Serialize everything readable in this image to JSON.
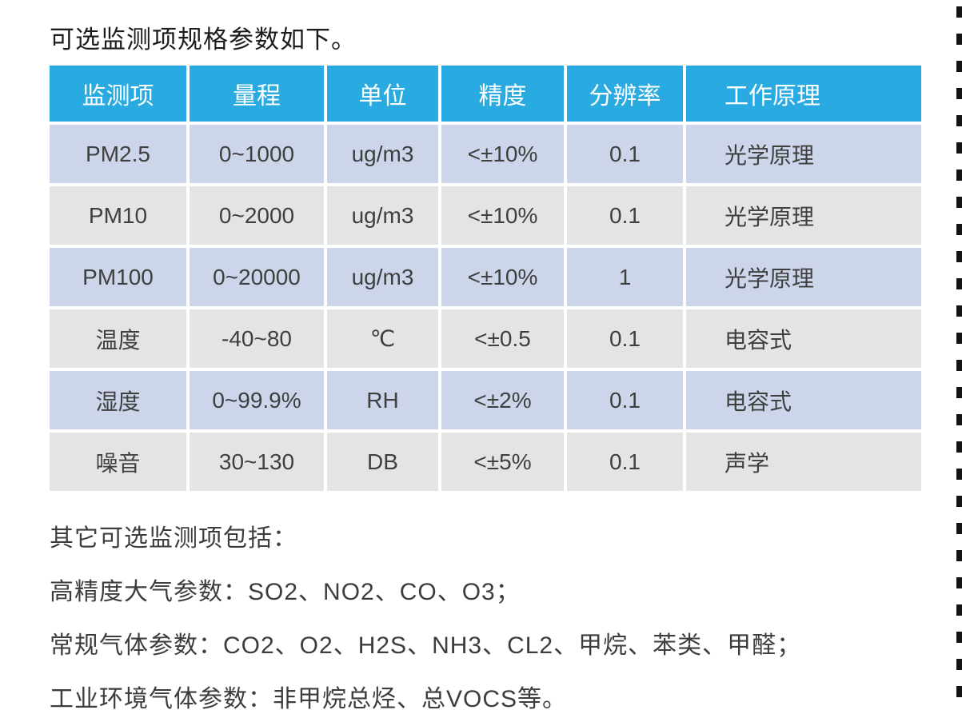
{
  "page": {
    "title": "可选监测项规格参数如下。"
  },
  "table": {
    "headers": [
      "监测项",
      "量程",
      "单位",
      "精度",
      "分辨率",
      "工作原理"
    ],
    "rows": [
      [
        "PM2.5",
        "0~1000",
        "ug/m3",
        "<±10%",
        "0.1",
        "光学原理"
      ],
      [
        "PM10",
        "0~2000",
        "ug/m3",
        "<±10%",
        "0.1",
        "光学原理"
      ],
      [
        "PM100",
        "0~20000",
        "ug/m3",
        "<±10%",
        "1",
        "光学原理"
      ],
      [
        "温度",
        "-40~80",
        "℃",
        "<±0.5",
        "0.1",
        "电容式"
      ],
      [
        "湿度",
        "0~99.9%",
        "RH",
        "<±2%",
        "0.1",
        "电容式"
      ],
      [
        "噪音",
        "30~130",
        "DB",
        "<±5%",
        "0.1",
        "声学"
      ]
    ]
  },
  "notes": {
    "lines": [
      "其它可选监测项包括：",
      "高精度大气参数：SO2、NO2、CO、O3；",
      "常规气体参数：CO2、O2、H2S、NH3、CL2、甲烷、苯类、甲醛；",
      "工业环境气体参数：非甲烷总烃、总VOCS等。"
    ]
  },
  "colors": {
    "header_background": "#29abe2",
    "header_text": "#ffffff",
    "row_odd_background": "#ccd5ea",
    "row_even_background": "#e3e4e4",
    "cell_text": "#3f3f3f",
    "dash_line": "#141414",
    "page_background": "#ffffff"
  }
}
